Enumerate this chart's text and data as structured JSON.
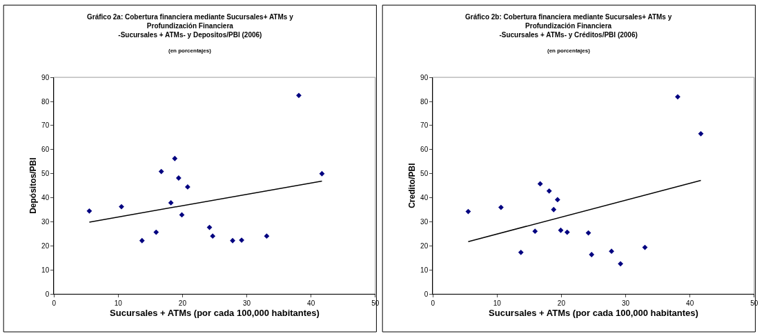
{
  "chart_data": [
    {
      "type": "scatter",
      "title": "Gráfico 2a: Cobertura financiera mediante Sucursales+ ATMs y\nProfundización Financiera\n-Sucursales + ATMs- y Depositos/PBI (2006)",
      "subtitle": "(en porcentajes)",
      "xlabel": "Sucursales + ATMs (por cada 100,000 habitantes)",
      "ylabel": "Depósitos/PBI",
      "xlim": [
        0,
        50
      ],
      "xticks": [
        0,
        10,
        20,
        30,
        40,
        50
      ],
      "ylim": [
        0,
        90
      ],
      "yticks": [
        0,
        10,
        20,
        30,
        40,
        50,
        60,
        70,
        80,
        90
      ],
      "grid": false,
      "series": [
        {
          "marker": "diamond",
          "color": "#000080",
          "x": [
            5.5,
            10.5,
            13.7,
            15.9,
            16.7,
            18.2,
            18.8,
            19.4,
            19.9,
            20.8,
            24.2,
            24.7,
            27.8,
            29.2,
            33.1,
            38.1,
            41.7
          ],
          "values": [
            34.5,
            36.3,
            22.2,
            25.7,
            50.9,
            37.9,
            56.3,
            48.2,
            32.9,
            44.5,
            27.7,
            24.1,
            22.2,
            22.4,
            24.1,
            82.5,
            50.0
          ]
        },
        {
          "type": "line",
          "color": "#000000",
          "line_style": "solid",
          "x": [
            5.5,
            41.7
          ],
          "values": [
            29.9,
            46.9
          ]
        }
      ]
    },
    {
      "type": "scatter",
      "title": "Gráfico 2b: Cobertura financiera mediante Sucursales+ ATMs y\nProfundización Financiera\n-Sucursales + ATMs- y Créditos/PBI (2006)",
      "subtitle": "(en porcentajes)",
      "xlabel": "Sucursales + ATMs (por cada 100,000 habitantes)",
      "ylabel": "Credito/PBI",
      "xlim": [
        0,
        50
      ],
      "xticks": [
        0,
        10,
        20,
        30,
        40,
        50
      ],
      "ylim": [
        0,
        90
      ],
      "yticks": [
        0,
        10,
        20,
        30,
        40,
        50,
        60,
        70,
        80,
        90
      ],
      "grid": false,
      "series": [
        {
          "marker": "diamond",
          "color": "#000080",
          "x": [
            5.5,
            10.6,
            13.7,
            15.9,
            16.7,
            18.1,
            18.8,
            19.4,
            19.9,
            20.9,
            24.2,
            24.7,
            27.8,
            29.2,
            33.0,
            38.1,
            41.7
          ],
          "values": [
            34.3,
            36.0,
            17.3,
            26.1,
            45.8,
            42.8,
            35.1,
            39.2,
            26.5,
            25.7,
            25.4,
            16.4,
            17.8,
            12.6,
            19.4,
            81.9,
            66.6
          ]
        },
        {
          "type": "line",
          "color": "#000000",
          "line_style": "solid",
          "x": [
            5.5,
            41.7
          ],
          "values": [
            21.8,
            47.2
          ]
        }
      ]
    }
  ]
}
